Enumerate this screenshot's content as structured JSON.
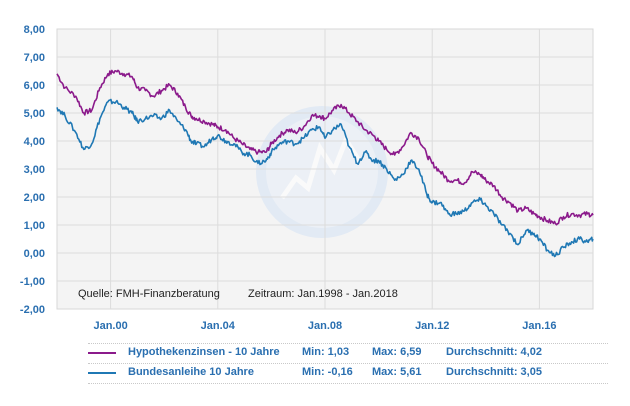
{
  "chart_data": {
    "type": "line",
    "ylim": [
      -2,
      8
    ],
    "yticks": [
      "8,00",
      "7,00",
      "6,00",
      "5,00",
      "4,00",
      "3,00",
      "2,00",
      "1,00",
      "0,00",
      "-1,00",
      "-2,00"
    ],
    "xticks": [
      {
        "label": "Jan.00",
        "year": 2000
      },
      {
        "label": "Jan.04",
        "year": 2004
      },
      {
        "label": "Jan.08",
        "year": 2008
      },
      {
        "label": "Jan.12",
        "year": 2012
      },
      {
        "label": "Jan.16",
        "year": 2016
      }
    ],
    "xlim": [
      1998.0,
      2018.0
    ],
    "grid": true,
    "note_source": "Quelle: FMH-Finanzberatung",
    "note_period": "Zeitraum: Jan.1998 - Jan.2018",
    "series": [
      {
        "name": "Hypothekenzinsen - 10 Jahre",
        "color": "#8b1a8b",
        "min_label": "Min: 1,03",
        "max_label": "Max: 6,59",
        "avg_label": "Durchschnitt: 4,02",
        "x": [
          1998.0,
          1998.3,
          1998.7,
          1999.0,
          1999.3,
          1999.6,
          1999.9,
          2000.2,
          2000.5,
          2000.8,
          2001.0,
          2001.3,
          2001.6,
          2001.9,
          2002.2,
          2002.5,
          2002.8,
          2003.0,
          2003.2,
          2003.5,
          2003.8,
          2004.0,
          2004.3,
          2004.6,
          2004.9,
          2005.2,
          2005.5,
          2005.8,
          2006.0,
          2006.3,
          2006.6,
          2006.9,
          2007.2,
          2007.5,
          2007.8,
          2008.0,
          2008.3,
          2008.6,
          2008.9,
          2009.2,
          2009.5,
          2009.8,
          2010.0,
          2010.3,
          2010.6,
          2010.9,
          2011.2,
          2011.5,
          2011.8,
          2012.0,
          2012.3,
          2012.6,
          2012.9,
          2013.2,
          2013.5,
          2013.8,
          2014.0,
          2014.3,
          2014.6,
          2014.9,
          2015.2,
          2015.5,
          2015.8,
          2016.0,
          2016.3,
          2016.6,
          2016.9,
          2017.2,
          2017.5,
          2017.8,
          2018.0
        ],
        "values": [
          6.4,
          5.9,
          5.6,
          5.0,
          5.1,
          5.9,
          6.4,
          6.5,
          6.4,
          6.3,
          5.9,
          5.8,
          5.6,
          5.8,
          6.0,
          5.7,
          5.2,
          4.9,
          4.8,
          4.7,
          4.6,
          4.5,
          4.4,
          4.1,
          3.9,
          3.7,
          3.6,
          3.6,
          3.9,
          4.2,
          4.4,
          4.3,
          4.5,
          4.9,
          4.9,
          4.8,
          5.1,
          5.3,
          5.0,
          4.7,
          4.4,
          4.2,
          4.0,
          3.7,
          3.5,
          3.8,
          4.3,
          4.1,
          3.5,
          3.2,
          2.9,
          2.6,
          2.6,
          2.5,
          2.9,
          2.8,
          2.6,
          2.4,
          2.0,
          1.8,
          1.5,
          1.6,
          1.4,
          1.3,
          1.15,
          1.05,
          1.3,
          1.4,
          1.35,
          1.4,
          1.35
        ]
      },
      {
        "name": "Bundesanleihe 10 Jahre",
        "color": "#1f78b4",
        "min_label": "Min: -0,16",
        "max_label": "Max: 5,61",
        "avg_label": "Durchschnitt: 3,05",
        "x": [
          1998.0,
          1998.3,
          1998.7,
          1999.0,
          1999.3,
          1999.6,
          1999.9,
          2000.2,
          2000.5,
          2000.8,
          2001.0,
          2001.3,
          2001.6,
          2001.9,
          2002.2,
          2002.5,
          2002.8,
          2003.0,
          2003.2,
          2003.5,
          2003.8,
          2004.0,
          2004.3,
          2004.6,
          2004.9,
          2005.2,
          2005.5,
          2005.8,
          2006.0,
          2006.3,
          2006.6,
          2006.9,
          2007.2,
          2007.5,
          2007.8,
          2008.0,
          2008.3,
          2008.6,
          2008.9,
          2009.2,
          2009.5,
          2009.8,
          2010.0,
          2010.3,
          2010.6,
          2010.9,
          2011.2,
          2011.5,
          2011.8,
          2012.0,
          2012.3,
          2012.6,
          2012.9,
          2013.2,
          2013.5,
          2013.8,
          2014.0,
          2014.3,
          2014.6,
          2014.9,
          2015.2,
          2015.5,
          2015.8,
          2016.0,
          2016.3,
          2016.6,
          2016.9,
          2017.2,
          2017.5,
          2017.8,
          2018.0
        ],
        "values": [
          5.2,
          4.9,
          4.3,
          3.7,
          3.9,
          4.8,
          5.4,
          5.4,
          5.2,
          5.0,
          4.7,
          4.8,
          4.9,
          4.8,
          5.1,
          4.7,
          4.4,
          4.0,
          3.9,
          3.8,
          4.1,
          4.2,
          4.0,
          3.9,
          3.6,
          3.5,
          3.2,
          3.3,
          3.6,
          3.9,
          4.0,
          3.9,
          4.1,
          4.4,
          4.5,
          4.1,
          4.4,
          4.6,
          3.8,
          3.2,
          3.6,
          3.3,
          3.3,
          3.0,
          2.6,
          2.8,
          3.3,
          3.0,
          2.1,
          1.8,
          1.8,
          1.4,
          1.4,
          1.5,
          1.8,
          1.9,
          1.7,
          1.4,
          1.0,
          0.7,
          0.3,
          0.8,
          0.7,
          0.5,
          0.1,
          -0.1,
          0.2,
          0.4,
          0.5,
          0.4,
          0.5
        ]
      }
    ]
  }
}
